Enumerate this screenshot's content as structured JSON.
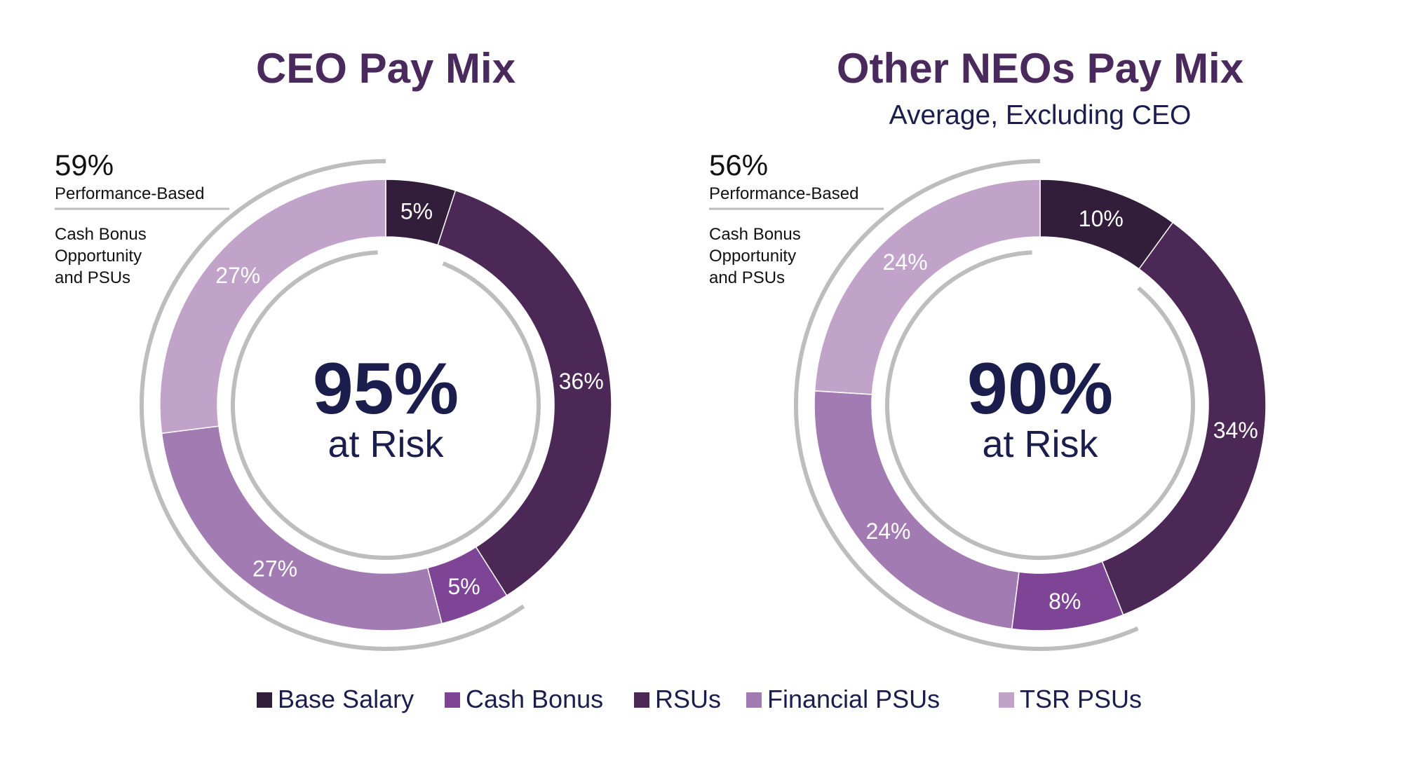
{
  "chart_data": [
    {
      "type": "pie",
      "title": "CEO Pay Mix",
      "subtitle": "",
      "center_value": "95%",
      "center_label": "at Risk",
      "callout": {
        "value": "59%",
        "line1": "Performance-Based",
        "note": [
          "Cash Bonus",
          "Opportunity",
          "and PSUs"
        ]
      },
      "categories": [
        "Base Salary",
        "RSUs",
        "Cash Bonus",
        "Financial PSUs",
        "TSR PSUs"
      ],
      "values": [
        5,
        36,
        5,
        27,
        27
      ],
      "labels": [
        "5%",
        "36%",
        "5%",
        "27%",
        "27%"
      ]
    },
    {
      "type": "pie",
      "title": "Other NEOs Pay Mix",
      "subtitle": "Average, Excluding CEO",
      "center_value": "90%",
      "center_label": "at Risk",
      "callout": {
        "value": "56%",
        "line1": "Performance-Based",
        "note": [
          "Cash Bonus",
          "Opportunity",
          "and PSUs"
        ]
      },
      "categories": [
        "Base Salary",
        "RSUs",
        "Cash Bonus",
        "Financial PSUs",
        "TSR PSUs"
      ],
      "values": [
        10,
        34,
        8,
        24,
        24
      ],
      "labels": [
        "10%",
        "34%",
        "8%",
        "24%",
        "24%"
      ]
    }
  ],
  "legend": {
    "items": [
      {
        "label": "Base Salary",
        "color": "#321d3b"
      },
      {
        "label": "Cash Bonus",
        "color": "#7e4496"
      },
      {
        "label": "RSUs",
        "color": "#4c2856"
      },
      {
        "label": "Financial PSUs",
        "color": "#a27bb2"
      },
      {
        "label": "TSR PSUs",
        "color": "#c1a3ca"
      }
    ]
  },
  "colors": {
    "Base Salary": "#321d3b",
    "RSUs": "#4c2856",
    "Cash Bonus": "#7e4496",
    "Financial PSUs": "#a27bb2",
    "TSR PSUs": "#c1a3ca",
    "title": "#4a2a5c",
    "dark_text": "#1b1d4d",
    "arc": "#bdbdbd"
  }
}
